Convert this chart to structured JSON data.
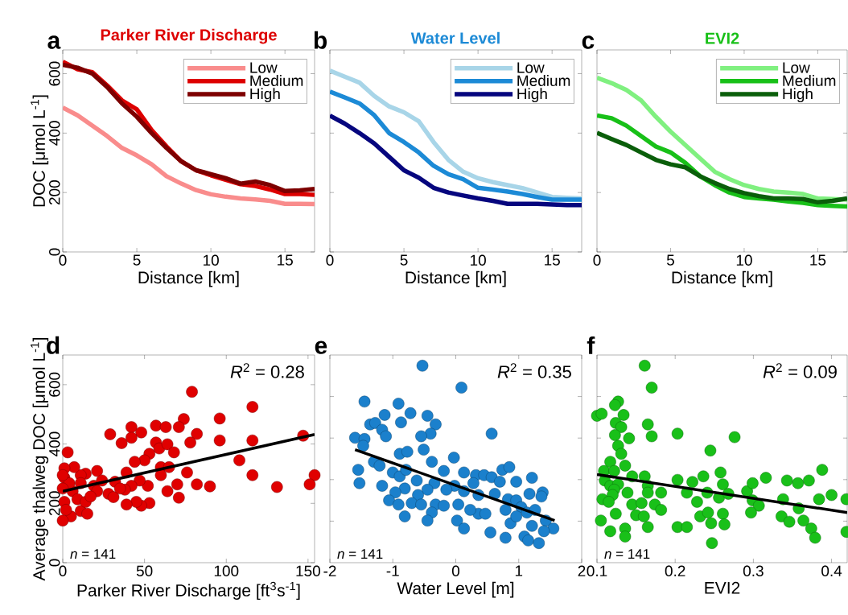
{
  "chart_data": [
    {
      "type": "line",
      "title": "Parker River Discharge",
      "annotations": [
        "a"
      ],
      "xlabel": "Distance [km]",
      "ylabel": "DOC  [μmol L$^{-1}$]",
      "x": [
        0,
        1,
        2,
        3,
        4,
        5,
        6,
        7,
        8,
        9,
        10,
        11,
        12,
        13,
        14,
        15,
        16,
        17
      ],
      "xlim": [
        0,
        17
      ],
      "ylim": [
        0,
        680
      ],
      "xticks": [
        0,
        5,
        10,
        15
      ],
      "yticks": [
        0,
        200,
        400,
        600
      ],
      "legend": "top right",
      "line_style": "solid",
      "series": [
        {
          "name": "Low",
          "color": "#f98c8c",
          "values": [
            486,
            460,
            425,
            390,
            350,
            325,
            295,
            255,
            230,
            208,
            194,
            186,
            180,
            177,
            172,
            162,
            162,
            161
          ]
        },
        {
          "name": "Medium",
          "color": "#dd0000",
          "values": [
            640,
            615,
            605,
            560,
            510,
            480,
            410,
            355,
            305,
            275,
            258,
            243,
            228,
            222,
            210,
            195,
            195,
            192
          ]
        },
        {
          "name": "High",
          "color": "#7d0000",
          "values": [
            630,
            620,
            600,
            555,
            500,
            455,
            400,
            350,
            305,
            275,
            262,
            248,
            230,
            237,
            225,
            205,
            207,
            212
          ]
        }
      ]
    },
    {
      "type": "line",
      "title": "Water Level",
      "annotations": [
        "b"
      ],
      "xlabel": "Distance [km]",
      "x": [
        0,
        1,
        2,
        3,
        4,
        5,
        6,
        7,
        8,
        9,
        10,
        11,
        12,
        13,
        14,
        15,
        16,
        17
      ],
      "xlim": [
        0,
        17
      ],
      "ylim": [
        0,
        680
      ],
      "xticks": [
        0,
        5,
        10,
        15
      ],
      "yticks": [
        0,
        200,
        400,
        600
      ],
      "tick_labels": "x",
      "legend": "top right",
      "line_style": "solid",
      "series": [
        {
          "name": "Low",
          "color": "#a8d5e8",
          "values": [
            610,
            590,
            570,
            525,
            490,
            470,
            440,
            370,
            310,
            270,
            248,
            235,
            225,
            215,
            200,
            185,
            182,
            180
          ]
        },
        {
          "name": "Medium",
          "color": "#1c8ad6",
          "values": [
            540,
            520,
            500,
            460,
            400,
            370,
            335,
            290,
            262,
            245,
            216,
            210,
            203,
            195,
            185,
            176,
            176,
            176
          ]
        },
        {
          "name": "High",
          "color": "#06067e",
          "values": [
            459,
            432,
            400,
            365,
            320,
            275,
            250,
            216,
            200,
            190,
            180,
            172,
            162,
            162,
            162,
            160,
            158,
            158
          ]
        }
      ]
    },
    {
      "type": "line",
      "title": "EVI2",
      "annotations": [
        "c"
      ],
      "xlabel": "Distance [km]",
      "x": [
        0,
        1,
        2,
        3,
        4,
        5,
        6,
        7,
        8,
        9,
        10,
        11,
        12,
        13,
        14,
        15,
        16,
        17
      ],
      "xlim": [
        0,
        17
      ],
      "ylim": [
        0,
        680
      ],
      "xticks": [
        0,
        5,
        10,
        15
      ],
      "yticks": [
        0,
        200,
        400,
        600
      ],
      "tick_labels": "x",
      "legend": "top right",
      "line_style": "solid",
      "series": [
        {
          "name": "Low",
          "color": "#80f080",
          "values": [
            586,
            568,
            545,
            510,
            455,
            405,
            360,
            315,
            270,
            245,
            225,
            212,
            203,
            200,
            195,
            180,
            178,
            176
          ]
        },
        {
          "name": "Medium",
          "color": "#18c018",
          "values": [
            459,
            450,
            425,
            390,
            355,
            335,
            300,
            255,
            225,
            200,
            185,
            180,
            176,
            170,
            165,
            158,
            155,
            153
          ]
        },
        {
          "name": "High",
          "color": "#0a5e0a",
          "values": [
            401,
            380,
            360,
            335,
            310,
            295,
            285,
            255,
            232,
            212,
            198,
            188,
            180,
            180,
            178,
            167,
            172,
            180
          ]
        }
      ]
    },
    {
      "type": "scatter",
      "annotations": [
        "d",
        "*R*$^{2}$ = 0.28",
        "*n* = 141"
      ],
      "xlabel": "Parker River Discharge [ft$^{3}$s$^{-1}$]",
      "ylabel": "Average thalweg DOC  [μmol L$^{-1}$]",
      "xlim": [
        0,
        154
      ],
      "ylim": [
        0,
        700
      ],
      "xticks": [
        0,
        50,
        100,
        150
      ],
      "yticks": [
        0,
        200,
        400,
        600
      ],
      "series": [
        {
          "color": "#e00000",
          "marker": "circle",
          "x": [
            79,
            116,
            96,
            74,
            147,
            82,
            96,
            116,
            78,
            42,
            57,
            63,
            71,
            48,
            29,
            36,
            42,
            57,
            59,
            64,
            68,
            53,
            50,
            44,
            39,
            60,
            65,
            76,
            108,
            116,
            154,
            151,
            131,
            90,
            82,
            70,
            64,
            71,
            60,
            52,
            53,
            48,
            45,
            39,
            47,
            42,
            38,
            32,
            28,
            31,
            21,
            19,
            21,
            14,
            11,
            7,
            1,
            3,
            1,
            6,
            9,
            11,
            15,
            5,
            0,
            1,
            2,
            14,
            17,
            11,
            4,
            0,
            0,
            24,
            35
          ],
          "values": [
            576,
            525,
            486,
            484,
            428,
            434,
            412,
            412,
            405,
            457,
            462,
            457,
            457,
            439,
            433,
            403,
            421,
            405,
            385,
            399,
            372,
            367,
            345,
            340,
            304,
            322,
            322,
            304,
            345,
            295,
            295,
            264,
            255,
            257,
            264,
            264,
            241,
            219,
            295,
            259,
            201,
            192,
            205,
            196,
            277,
            259,
            246,
            273,
            232,
            221,
            309,
            259,
            241,
            300,
            295,
            322,
            318,
            372,
            286,
            241,
            214,
            174,
            165,
            156,
            142,
            205,
            178,
            205,
            223,
            268,
            268,
            250,
            295,
            277,
            250
          ]
        },
        {
          "type": "line",
          "marker": "none",
          "color": "#000000",
          "x": [
            0,
            154
          ],
          "values": [
            241,
            432
          ]
        }
      ]
    },
    {
      "type": "scatter",
      "annotations": [
        "e",
        "*R*$^{2}$ = 0.35",
        "*n* = 141"
      ],
      "xlabel": "Water Level [m]",
      "xlim": [
        -2,
        2
      ],
      "ylim": [
        0,
        700
      ],
      "xticks": [
        -2,
        -1,
        0,
        1,
        2
      ],
      "yticks": [
        {
          "value": 140,
          "label": null
        },
        {
          "value": 280,
          "label": null
        },
        {
          "value": 420,
          "label": null
        },
        {
          "value": 560,
          "label": null
        }
      ],
      "tick_labels": "x",
      "series": [
        {
          "color": "#1b80cc",
          "marker": "circle",
          "x": [
            -0.53,
            0.09,
            -1.45,
            -0.91,
            -1.13,
            -0.72,
            -0.45,
            -0.32,
            -1.36,
            -1.28,
            -0.87,
            -1.17,
            -1.11,
            -0.4,
            -0.55,
            0.57,
            -1.6,
            -1.45,
            -1.47,
            -0.51,
            -0.89,
            -0.77,
            -0.03,
            -0.38,
            -1.3,
            -1.21,
            -1.55,
            -1.53,
            -1.17,
            -1.0,
            -0.89,
            -0.79,
            -0.62,
            -0.34,
            -0.19,
            0.13,
            0.32,
            0.45,
            0.57,
            0.28,
            -0.02,
            -0.15,
            -0.45,
            -0.6,
            -0.81,
            -0.96,
            -1.06,
            -0.91,
            -0.7,
            -0.55,
            -0.32,
            -0.19,
            0.04,
            0.13,
            0.36,
            0.36,
            0.23,
            0.47,
            0.02,
            0.13,
            -0.38,
            -0.45,
            -0.81,
            0.55,
            0.79,
            0.74,
            0.85,
            0.7,
            0.96,
            1.21,
            0.62,
            0.83,
            0.96,
            1.17,
            1.38,
            1.36,
            0.79,
            0.87,
            1.04,
            1.13,
            1.26,
            1.43,
            1.55,
            1.09,
            1.15,
            1.32,
            1.4,
            1.21,
            0.96
          ],
          "values": [
            664,
            590,
            543,
            536,
            498,
            504,
            495,
            466,
            466,
            471,
            473,
            448,
            426,
            435,
            426,
            435,
            421,
            417,
            394,
            381,
            367,
            374,
            354,
            340,
            340,
            327,
            313,
            268,
            259,
            304,
            291,
            313,
            277,
            268,
            309,
            304,
            295,
            295,
            288,
            268,
            259,
            246,
            246,
            228,
            250,
            237,
            210,
            196,
            201,
            196,
            196,
            192,
            196,
            241,
            228,
            165,
            178,
            165,
            142,
            115,
            169,
            142,
            156,
            102,
            84,
            313,
            322,
            273,
            273,
            286,
            232,
            214,
            210,
            232,
            237,
            223,
            178,
            133,
            187,
            169,
            178,
            142,
            115,
            88,
            75,
            66,
            106,
            124,
            156
          ]
        },
        {
          "type": "line",
          "marker": "none",
          "color": "#000000",
          "x": [
            -1.6,
            1.57
          ],
          "values": [
            381,
            142
          ]
        }
      ]
    },
    {
      "type": "scatter",
      "annotations": [
        "f",
        "*R*$^{2}$ = 0.09",
        "*n* = 141"
      ],
      "xlabel": "EVI2",
      "xlim": [
        0.1,
        0.42
      ],
      "ylim": [
        0,
        700
      ],
      "xticks": [
        0.1,
        0.2,
        0.3,
        0.4
      ],
      "yticks": [
        {
          "value": 140,
          "label": null
        },
        {
          "value": 280,
          "label": null
        },
        {
          "value": 420,
          "label": null
        },
        {
          "value": 560,
          "label": null
        }
      ],
      "tick_labels": "x",
      "series": [
        {
          "color": "#19c019",
          "marker": "circle",
          "x": [
            0.161,
            0.17,
            0.1,
            0.106,
            0.127,
            0.123,
            0.134,
            0.124,
            0.131,
            0.123,
            0.141,
            0.165,
            0.17,
            0.203,
            0.276,
            0.245,
            0.127,
            0.131,
            0.117,
            0.136,
            0.109,
            0.122,
            0.145,
            0.161,
            0.11,
            0.117,
            0.127,
            0.122,
            0.12,
            0.139,
            0.165,
            0.165,
            0.182,
            0.107,
            0.115,
            0.145,
            0.157,
            0.174,
            0.182,
            0.124,
            0.15,
            0.16,
            0.105,
            0.117,
            0.136,
            0.136,
            0.165,
            0.203,
            0.215,
            0.203,
            0.222,
            0.236,
            0.215,
            0.228,
            0.241,
            0.232,
            0.246,
            0.247,
            0.242,
            0.258,
            0.261,
            0.256,
            0.261,
            0.263,
            0.268,
            0.292,
            0.299,
            0.316,
            0.299,
            0.307,
            0.297,
            0.343,
            0.357,
            0.371,
            0.388,
            0.338,
            0.336,
            0.346,
            0.358,
            0.364,
            0.374,
            0.379,
            0.384,
            0.4,
            0.419,
            0.419
          ],
          "values": [
            664,
            590,
            495,
            502,
            543,
            531,
            498,
            471,
            457,
            430,
            419,
            466,
            426,
            435,
            423,
            378,
            394,
            367,
            340,
            327,
            309,
            309,
            291,
            291,
            277,
            259,
            264,
            246,
            228,
            236,
            259,
            236,
            236,
            214,
            205,
            196,
            201,
            196,
            178,
            165,
            160,
            156,
            142,
            106,
            115,
            88,
            120,
            120,
            120,
            279,
            272,
            291,
            236,
            205,
            236,
            156,
            133,
            66,
            169,
            304,
            264,
            219,
            165,
            129,
            232,
            241,
            268,
            286,
            210,
            192,
            169,
            277,
            268,
            277,
            313,
            214,
            156,
            138,
            183,
            142,
            115,
            84,
            214,
            228,
            214,
            104
          ]
        },
        {
          "type": "line",
          "marker": "none",
          "color": "#000000",
          "x": [
            0.1,
            0.42
          ],
          "values": [
            297,
            169
          ]
        }
      ]
    }
  ]
}
